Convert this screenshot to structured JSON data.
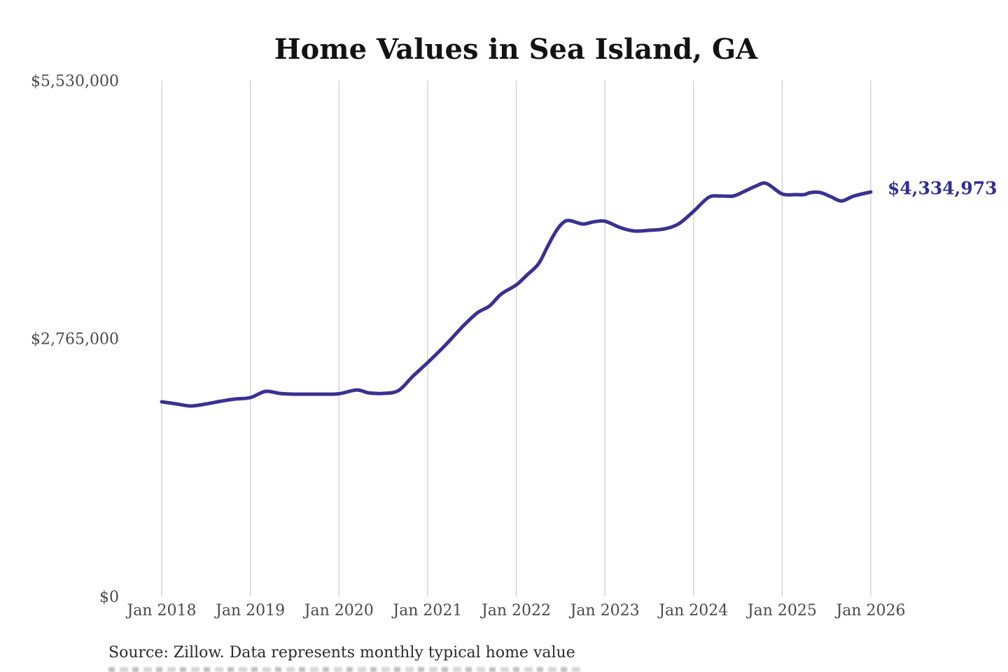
{
  "title": "Home Values in Sea Island, GA",
  "latest_value_label": "$4,334,973",
  "source_note": "Source: Zillow. Data represents monthly typical home value",
  "colors": {
    "background": "#ffffff",
    "line": "#3a3191",
    "end_label": "#322e90",
    "grid": "#cccccc",
    "axis_text": "#4a4a4a",
    "title_text": "#131313",
    "source_text": "#2b2b2b"
  },
  "chart_data": {
    "type": "line",
    "title": "Home Values in Sea Island, GA",
    "xlabel": "",
    "ylabel": "",
    "legend": "none",
    "grid": "vertical-only",
    "x_range_years": [
      2018,
      2026
    ],
    "x_tick_labels": [
      "Jan 2018",
      "Jan 2019",
      "Jan 2020",
      "Jan 2021",
      "Jan 2022",
      "Jan 2023",
      "Jan 2024",
      "Jan 2025",
      "Jan 2026"
    ],
    "ylim": [
      0,
      5530000
    ],
    "y_ticks": [
      {
        "label": "$0",
        "value": 0
      },
      {
        "label": "$2,765,000",
        "value": 2765000
      },
      {
        "label": "$5,530,000",
        "value": 5530000
      }
    ],
    "end_label": {
      "text": "$4,334,973",
      "value": 4334973
    },
    "series": [
      {
        "name": "Monthly typical home value",
        "points": [
          [
            2018.0,
            2086000
          ],
          [
            2018.17,
            2063000
          ],
          [
            2018.33,
            2041000
          ],
          [
            2018.5,
            2063000
          ],
          [
            2018.67,
            2093000
          ],
          [
            2018.83,
            2116000
          ],
          [
            2019.0,
            2131000
          ],
          [
            2019.17,
            2198000
          ],
          [
            2019.33,
            2176000
          ],
          [
            2019.5,
            2168000
          ],
          [
            2019.67,
            2168000
          ],
          [
            2019.83,
            2168000
          ],
          [
            2020.0,
            2172000
          ],
          [
            2020.2,
            2213000
          ],
          [
            2020.33,
            2183000
          ],
          [
            2020.5,
            2176000
          ],
          [
            2020.67,
            2206000
          ],
          [
            2020.83,
            2356000
          ],
          [
            2021.0,
            2506000
          ],
          [
            2021.2,
            2693000
          ],
          [
            2021.39,
            2888000
          ],
          [
            2021.56,
            3039000
          ],
          [
            2021.7,
            3114000
          ],
          [
            2021.83,
            3241000
          ],
          [
            2022.0,
            3339000
          ],
          [
            2022.12,
            3444000
          ],
          [
            2022.25,
            3564000
          ],
          [
            2022.35,
            3744000
          ],
          [
            2022.45,
            3917000
          ],
          [
            2022.53,
            4007000
          ],
          [
            2022.6,
            4029000
          ],
          [
            2022.75,
            3992000
          ],
          [
            2022.87,
            4014000
          ],
          [
            2023.0,
            4022000
          ],
          [
            2023.17,
            3954000
          ],
          [
            2023.33,
            3917000
          ],
          [
            2023.5,
            3924000
          ],
          [
            2023.67,
            3939000
          ],
          [
            2023.83,
            3992000
          ],
          [
            2024.0,
            4127000
          ],
          [
            2024.17,
            4277000
          ],
          [
            2024.3,
            4292000
          ],
          [
            2024.45,
            4292000
          ],
          [
            2024.58,
            4344000
          ],
          [
            2024.7,
            4397000
          ],
          [
            2024.82,
            4427000
          ],
          [
            2025.0,
            4314000
          ],
          [
            2025.15,
            4307000
          ],
          [
            2025.25,
            4307000
          ],
          [
            2025.32,
            4329000
          ],
          [
            2025.43,
            4329000
          ],
          [
            2025.55,
            4284000
          ],
          [
            2025.67,
            4239000
          ],
          [
            2025.81,
            4292000
          ],
          [
            2026.0,
            4334973
          ]
        ]
      }
    ]
  }
}
